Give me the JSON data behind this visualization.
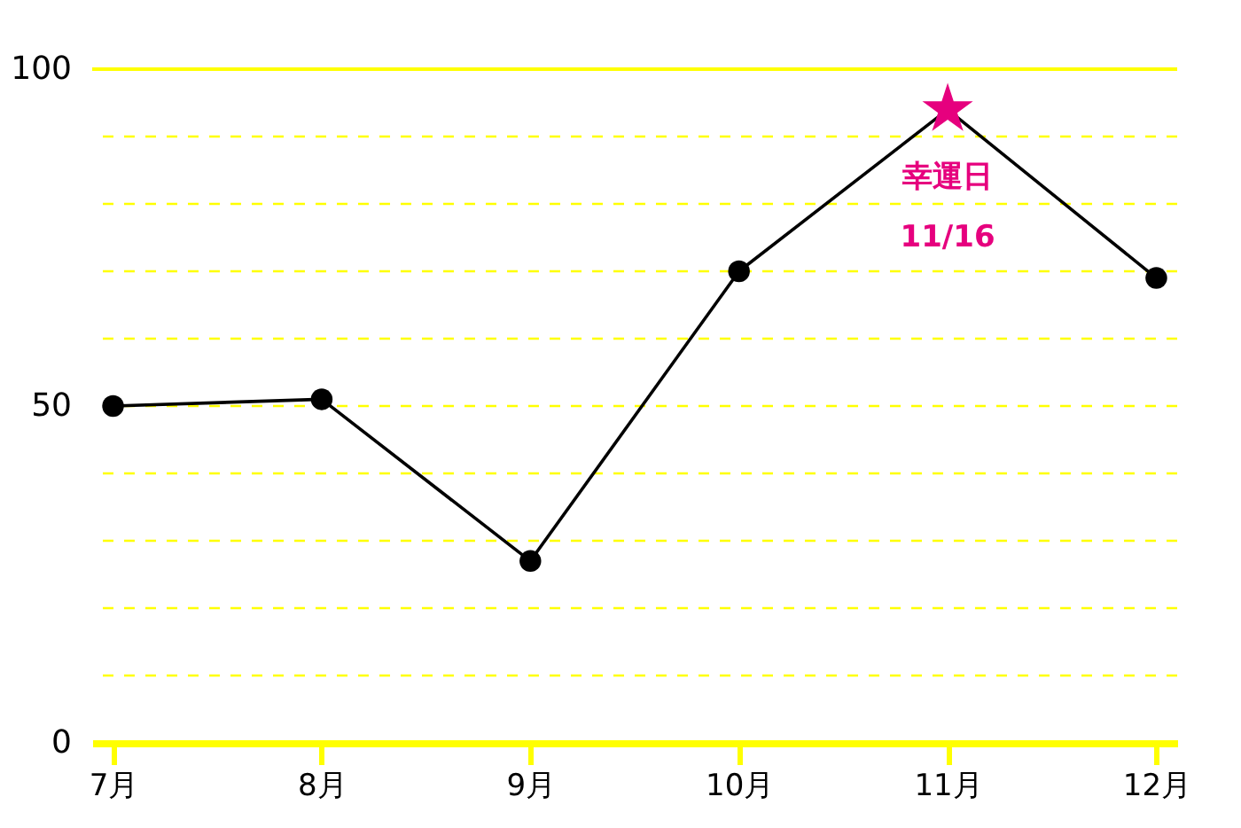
{
  "chart_data": {
    "type": "line",
    "categories": [
      "7月",
      "8月",
      "9月",
      "10月",
      "11月",
      "12月"
    ],
    "series": [
      {
        "color": "#000000",
        "colors": [
          "#000000",
          "#000000",
          "#000000",
          "#000000",
          "#e6007e",
          "#000000"
        ],
        "values": [
          50,
          51,
          27,
          70,
          94,
          69
        ]
      }
    ],
    "ylim": [
      0,
      100
    ],
    "yticks": [
      0,
      {
        "value": 10,
        "label": null
      },
      {
        "value": 20,
        "label": null
      },
      {
        "value": 30,
        "label": null
      },
      {
        "value": 40,
        "label": null
      },
      50,
      {
        "value": 60,
        "label": null
      },
      {
        "value": 70,
        "label": null
      },
      {
        "value": 80,
        "label": null
      },
      {
        "value": 90,
        "label": null
      },
      100
    ],
    "grid": "y",
    "marker": "circle",
    "line_style": "solid",
    "annotations": [
      {
        "text": "幸運日",
        "x": "11月",
        "y": 94
      },
      "11/16"
    ]
  }
}
